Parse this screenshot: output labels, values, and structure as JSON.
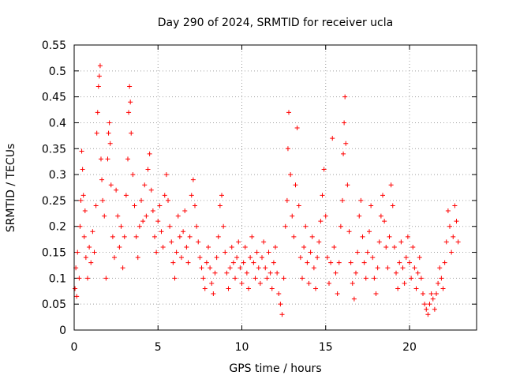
{
  "chart_data": {
    "type": "scatter",
    "title": "Day 290 of 2024, SRMTID for receiver ucla",
    "xlabel": "GPS time / hours",
    "ylabel": "SRMTID / TECUs",
    "xlim": [
      0,
      24
    ],
    "ylim": [
      0,
      0.55
    ],
    "xticks": [
      0,
      5,
      10,
      15,
      20
    ],
    "yticks": [
      0,
      0.05,
      0.1,
      0.15,
      0.2,
      0.25,
      0.3,
      0.35,
      0.4,
      0.45,
      0.5,
      0.55
    ],
    "xtick_labels": [
      "0",
      "5",
      "10",
      "15",
      "20"
    ],
    "ytick_labels": [
      "0",
      "0.05",
      "0.1",
      "0.15",
      "0.2",
      "0.25",
      "0.3",
      "0.35",
      "0.4",
      "0.45",
      "0.5",
      "0.55"
    ],
    "grid": true,
    "marker": "plus",
    "marker_color": "#ff0000",
    "series": [
      {
        "name": "SRMTID",
        "points": [
          [
            0.05,
            0.08
          ],
          [
            0.1,
            0.12
          ],
          [
            0.15,
            0.065
          ],
          [
            0.2,
            0.15
          ],
          [
            0.3,
            0.1
          ],
          [
            0.35,
            0.2
          ],
          [
            0.4,
            0.25
          ],
          [
            0.45,
            0.345
          ],
          [
            0.5,
            0.31
          ],
          [
            0.55,
            0.26
          ],
          [
            0.6,
            0.18
          ],
          [
            0.65,
            0.23
          ],
          [
            0.7,
            0.14
          ],
          [
            0.8,
            0.1
          ],
          [
            0.9,
            0.16
          ],
          [
            1.0,
            0.13
          ],
          [
            1.1,
            0.19
          ],
          [
            1.2,
            0.15
          ],
          [
            1.3,
            0.24
          ],
          [
            1.35,
            0.38
          ],
          [
            1.4,
            0.42
          ],
          [
            1.45,
            0.47
          ],
          [
            1.5,
            0.49
          ],
          [
            1.55,
            0.51
          ],
          [
            1.6,
            0.33
          ],
          [
            1.65,
            0.29
          ],
          [
            1.7,
            0.25
          ],
          [
            1.8,
            0.22
          ],
          [
            1.9,
            0.1
          ],
          [
            2.0,
            0.33
          ],
          [
            2.05,
            0.38
          ],
          [
            2.1,
            0.4
          ],
          [
            2.15,
            0.36
          ],
          [
            2.2,
            0.28
          ],
          [
            2.3,
            0.18
          ],
          [
            2.4,
            0.14
          ],
          [
            2.5,
            0.27
          ],
          [
            2.6,
            0.22
          ],
          [
            2.7,
            0.16
          ],
          [
            2.8,
            0.2
          ],
          [
            2.9,
            0.12
          ],
          [
            3.0,
            0.18
          ],
          [
            3.1,
            0.26
          ],
          [
            3.2,
            0.33
          ],
          [
            3.25,
            0.42
          ],
          [
            3.3,
            0.47
          ],
          [
            3.35,
            0.44
          ],
          [
            3.4,
            0.38
          ],
          [
            3.5,
            0.3
          ],
          [
            3.6,
            0.24
          ],
          [
            3.7,
            0.18
          ],
          [
            3.8,
            0.14
          ],
          [
            3.9,
            0.2
          ],
          [
            4.0,
            0.25
          ],
          [
            4.1,
            0.21
          ],
          [
            4.2,
            0.28
          ],
          [
            4.3,
            0.22
          ],
          [
            4.4,
            0.31
          ],
          [
            4.5,
            0.34
          ],
          [
            4.6,
            0.27
          ],
          [
            4.7,
            0.23
          ],
          [
            4.8,
            0.18
          ],
          [
            4.9,
            0.15
          ],
          [
            5.0,
            0.21
          ],
          [
            5.1,
            0.24
          ],
          [
            5.2,
            0.19
          ],
          [
            5.3,
            0.16
          ],
          [
            5.4,
            0.26
          ],
          [
            5.5,
            0.3
          ],
          [
            5.6,
            0.25
          ],
          [
            5.7,
            0.2
          ],
          [
            5.8,
            0.17
          ],
          [
            5.9,
            0.13
          ],
          [
            6.0,
            0.1
          ],
          [
            6.1,
            0.15
          ],
          [
            6.2,
            0.22
          ],
          [
            6.3,
            0.18
          ],
          [
            6.4,
            0.14
          ],
          [
            6.5,
            0.19
          ],
          [
            6.6,
            0.23
          ],
          [
            6.7,
            0.16
          ],
          [
            6.8,
            0.13
          ],
          [
            6.9,
            0.18
          ],
          [
            7.0,
            0.26
          ],
          [
            7.1,
            0.29
          ],
          [
            7.2,
            0.24
          ],
          [
            7.3,
            0.2
          ],
          [
            7.4,
            0.17
          ],
          [
            7.5,
            0.14
          ],
          [
            7.6,
            0.12
          ],
          [
            7.7,
            0.1
          ],
          [
            7.8,
            0.08
          ],
          [
            7.9,
            0.13
          ],
          [
            8.0,
            0.16
          ],
          [
            8.1,
            0.12
          ],
          [
            8.2,
            0.09
          ],
          [
            8.3,
            0.07
          ],
          [
            8.4,
            0.11
          ],
          [
            8.5,
            0.14
          ],
          [
            8.6,
            0.18
          ],
          [
            8.7,
            0.24
          ],
          [
            8.8,
            0.26
          ],
          [
            8.9,
            0.2
          ],
          [
            9.0,
            0.15
          ],
          [
            9.1,
            0.11
          ],
          [
            9.2,
            0.08
          ],
          [
            9.3,
            0.12
          ],
          [
            9.4,
            0.16
          ],
          [
            9.5,
            0.13
          ],
          [
            9.6,
            0.1
          ],
          [
            9.7,
            0.14
          ],
          [
            9.8,
            0.17
          ],
          [
            9.9,
            0.12
          ],
          [
            10.0,
            0.09
          ],
          [
            10.1,
            0.13
          ],
          [
            10.2,
            0.16
          ],
          [
            10.3,
            0.11
          ],
          [
            10.4,
            0.08
          ],
          [
            10.5,
            0.14
          ],
          [
            10.6,
            0.18
          ],
          [
            10.7,
            0.13
          ],
          [
            10.8,
            0.1
          ],
          [
            10.9,
            0.15
          ],
          [
            11.0,
            0.12
          ],
          [
            11.1,
            0.09
          ],
          [
            11.2,
            0.14
          ],
          [
            11.3,
            0.17
          ],
          [
            11.4,
            0.12
          ],
          [
            11.5,
            0.1
          ],
          [
            11.6,
            0.15
          ],
          [
            11.7,
            0.11
          ],
          [
            11.8,
            0.08
          ],
          [
            11.9,
            0.13
          ],
          [
            12.0,
            0.16
          ],
          [
            12.1,
            0.11
          ],
          [
            12.2,
            0.07
          ],
          [
            12.3,
            0.05
          ],
          [
            12.4,
            0.03
          ],
          [
            12.5,
            0.1
          ],
          [
            12.6,
            0.2
          ],
          [
            12.7,
            0.25
          ],
          [
            12.75,
            0.35
          ],
          [
            12.8,
            0.42
          ],
          [
            12.9,
            0.3
          ],
          [
            13.0,
            0.22
          ],
          [
            13.1,
            0.18
          ],
          [
            13.2,
            0.28
          ],
          [
            13.3,
            0.39
          ],
          [
            13.4,
            0.24
          ],
          [
            13.5,
            0.14
          ],
          [
            13.6,
            0.1
          ],
          [
            13.7,
            0.16
          ],
          [
            13.8,
            0.2
          ],
          [
            13.9,
            0.13
          ],
          [
            14.0,
            0.09
          ],
          [
            14.1,
            0.15
          ],
          [
            14.2,
            0.18
          ],
          [
            14.3,
            0.12
          ],
          [
            14.4,
            0.08
          ],
          [
            14.5,
            0.14
          ],
          [
            14.6,
            0.17
          ],
          [
            14.7,
            0.21
          ],
          [
            14.8,
            0.26
          ],
          [
            14.9,
            0.31
          ],
          [
            15.0,
            0.22
          ],
          [
            15.1,
            0.14
          ],
          [
            15.2,
            0.09
          ],
          [
            15.3,
            0.13
          ],
          [
            15.4,
            0.37
          ],
          [
            15.5,
            0.16
          ],
          [
            15.6,
            0.11
          ],
          [
            15.7,
            0.07
          ],
          [
            15.8,
            0.13
          ],
          [
            15.9,
            0.2
          ],
          [
            16.0,
            0.25
          ],
          [
            16.05,
            0.34
          ],
          [
            16.1,
            0.4
          ],
          [
            16.15,
            0.45
          ],
          [
            16.2,
            0.36
          ],
          [
            16.3,
            0.28
          ],
          [
            16.4,
            0.19
          ],
          [
            16.5,
            0.13
          ],
          [
            16.6,
            0.09
          ],
          [
            16.7,
            0.06
          ],
          [
            16.8,
            0.11
          ],
          [
            16.9,
            0.15
          ],
          [
            17.0,
            0.22
          ],
          [
            17.1,
            0.25
          ],
          [
            17.2,
            0.18
          ],
          [
            17.3,
            0.13
          ],
          [
            17.4,
            0.1
          ],
          [
            17.5,
            0.15
          ],
          [
            17.6,
            0.19
          ],
          [
            17.7,
            0.24
          ],
          [
            17.8,
            0.14
          ],
          [
            17.9,
            0.1
          ],
          [
            18.0,
            0.07
          ],
          [
            18.1,
            0.12
          ],
          [
            18.2,
            0.17
          ],
          [
            18.3,
            0.22
          ],
          [
            18.4,
            0.26
          ],
          [
            18.5,
            0.21
          ],
          [
            18.6,
            0.16
          ],
          [
            18.7,
            0.12
          ],
          [
            18.8,
            0.18
          ],
          [
            18.9,
            0.28
          ],
          [
            19.0,
            0.24
          ],
          [
            19.1,
            0.16
          ],
          [
            19.2,
            0.11
          ],
          [
            19.3,
            0.08
          ],
          [
            19.4,
            0.13
          ],
          [
            19.5,
            0.17
          ],
          [
            19.6,
            0.12
          ],
          [
            19.7,
            0.09
          ],
          [
            19.8,
            0.14
          ],
          [
            19.9,
            0.18
          ],
          [
            20.0,
            0.13
          ],
          [
            20.1,
            0.1
          ],
          [
            20.2,
            0.16
          ],
          [
            20.3,
            0.12
          ],
          [
            20.4,
            0.08
          ],
          [
            20.5,
            0.11
          ],
          [
            20.6,
            0.14
          ],
          [
            20.7,
            0.1
          ],
          [
            20.8,
            0.07
          ],
          [
            20.9,
            0.05
          ],
          [
            21.0,
            0.04
          ],
          [
            21.1,
            0.03
          ],
          [
            21.2,
            0.05
          ],
          [
            21.3,
            0.07
          ],
          [
            21.4,
            0.06
          ],
          [
            21.5,
            0.04
          ],
          [
            21.6,
            0.07
          ],
          [
            21.7,
            0.09
          ],
          [
            21.8,
            0.12
          ],
          [
            21.9,
            0.1
          ],
          [
            22.0,
            0.08
          ],
          [
            22.1,
            0.13
          ],
          [
            22.2,
            0.17
          ],
          [
            22.3,
            0.23
          ],
          [
            22.4,
            0.2
          ],
          [
            22.5,
            0.15
          ],
          [
            22.6,
            0.18
          ],
          [
            22.7,
            0.24
          ],
          [
            22.8,
            0.21
          ],
          [
            22.9,
            0.17
          ]
        ]
      }
    ]
  }
}
